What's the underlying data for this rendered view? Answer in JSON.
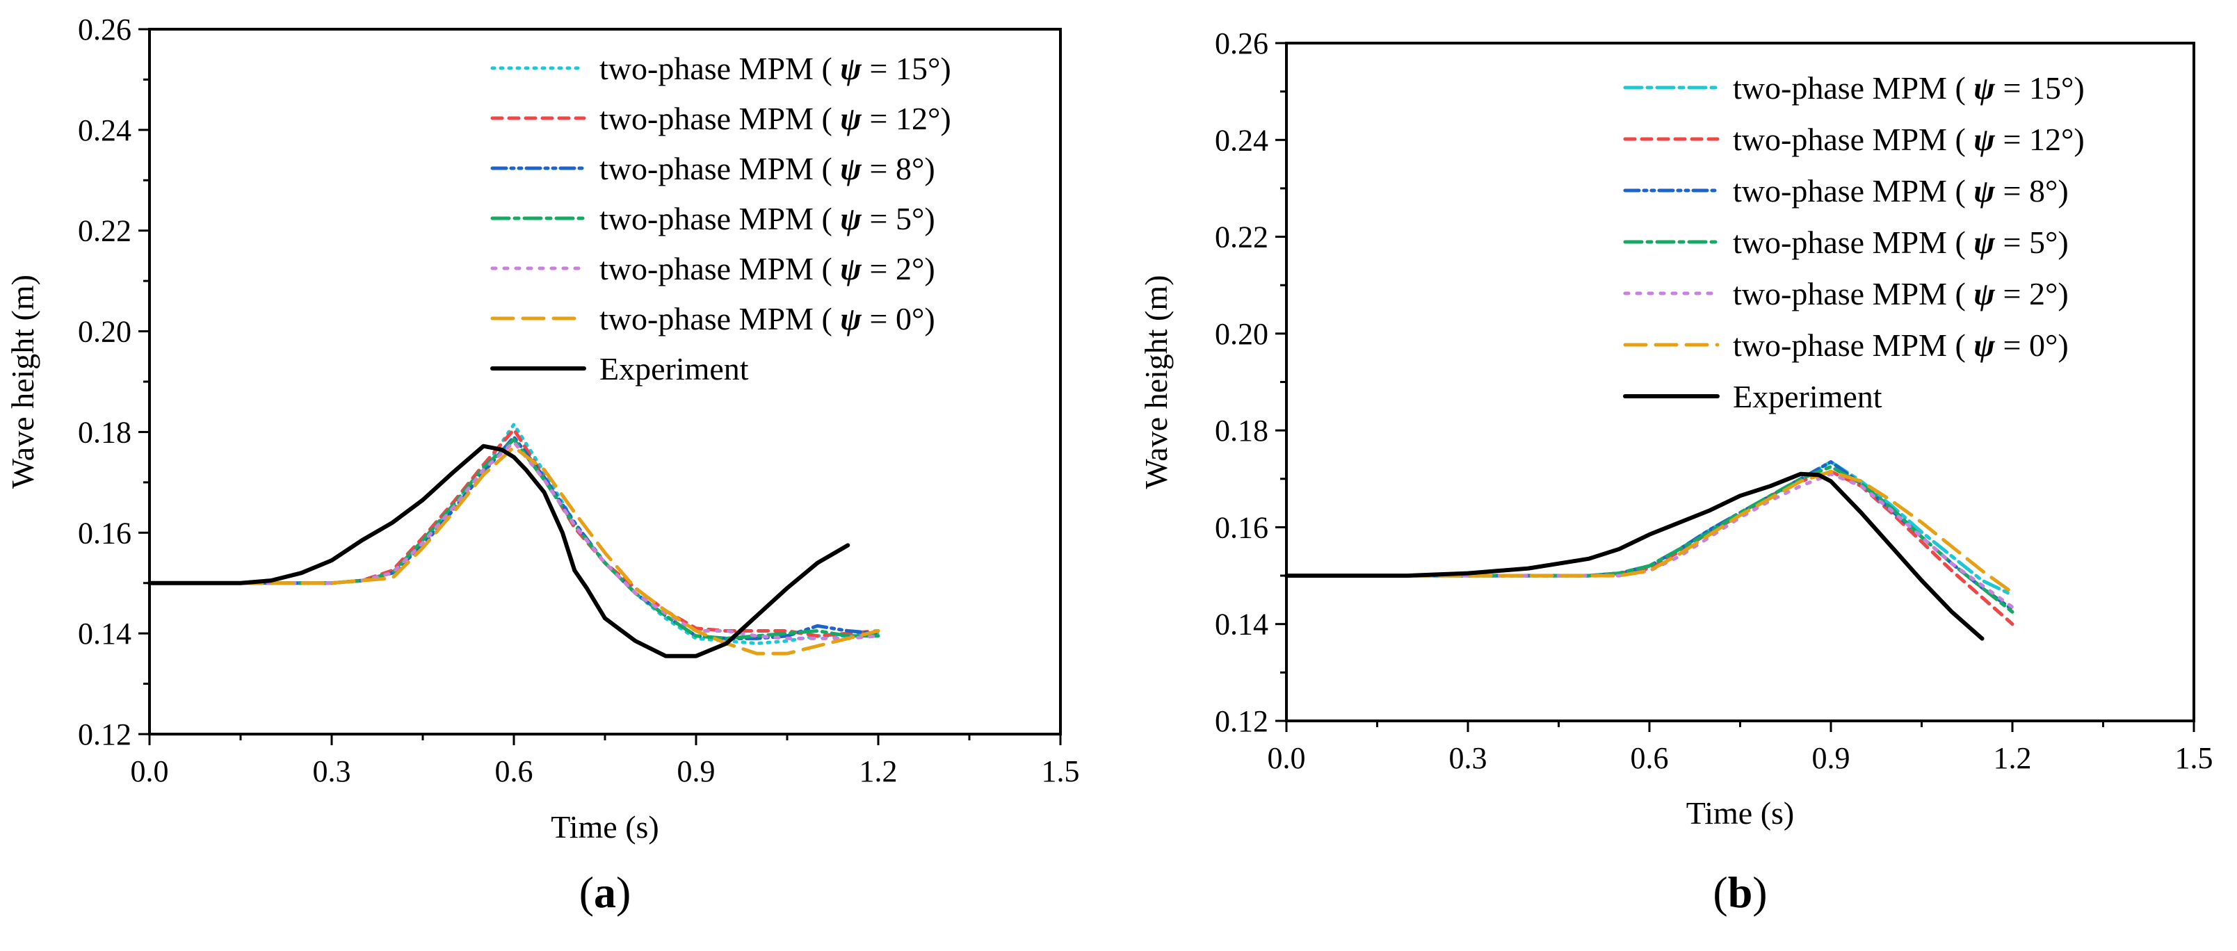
{
  "colors": {
    "s15": "#1ec8d2",
    "s12": "#f04646",
    "s8": "#1e64c8",
    "s5": "#14aa64",
    "s2": "#c882dc",
    "s0": "#e6a014",
    "experiment": "#000000"
  },
  "chart_data": [
    {
      "type": "line",
      "panel_label": "(a)",
      "panel_letter": "a",
      "xlabel": "Time (s)",
      "ylabel": "Wave height (m)",
      "xlim": [
        0.0,
        1.5
      ],
      "ylim": [
        0.12,
        0.26
      ],
      "xticks": [
        "0.0",
        "0.3",
        "0.6",
        "0.9",
        "1.2",
        "1.5"
      ],
      "yticks": [
        "0.12",
        "0.14",
        "0.16",
        "0.18",
        "0.20",
        "0.22",
        "0.24",
        "0.26"
      ],
      "legend_position": "top-right",
      "series": [
        {
          "name": "two-phase MPM (",
          "sym": "ψ",
          "tail": "= 15°)",
          "key": "s15",
          "dash": "3,9",
          "x": [
            0.0,
            0.1,
            0.2,
            0.3,
            0.35,
            0.4,
            0.45,
            0.5,
            0.55,
            0.6,
            0.65,
            0.7,
            0.75,
            0.8,
            0.85,
            0.9,
            0.95,
            1.0,
            1.05,
            1.1,
            1.15,
            1.2
          ],
          "y": [
            0.15,
            0.15,
            0.15,
            0.15,
            0.1505,
            0.152,
            0.158,
            0.1655,
            0.1725,
            0.1815,
            0.172,
            0.162,
            0.154,
            0.148,
            0.143,
            0.139,
            0.1385,
            0.138,
            0.1385,
            0.1395,
            0.1395,
            0.14
          ]
        },
        {
          "name": "two-phase MPM (",
          "sym": "ψ",
          "tail": "= 12°)",
          "key": "s12",
          "dash": "14,10",
          "x": [
            0.0,
            0.1,
            0.2,
            0.3,
            0.35,
            0.4,
            0.45,
            0.5,
            0.55,
            0.6,
            0.65,
            0.7,
            0.75,
            0.8,
            0.85,
            0.9,
            0.95,
            1.0,
            1.05,
            1.1,
            1.15,
            1.2
          ],
          "y": [
            0.15,
            0.15,
            0.15,
            0.15,
            0.1505,
            0.1525,
            0.159,
            0.166,
            0.1735,
            0.1805,
            0.171,
            0.161,
            0.154,
            0.149,
            0.1445,
            0.141,
            0.1405,
            0.1405,
            0.1405,
            0.1395,
            0.14,
            0.1405
          ]
        },
        {
          "name": "two-phase MPM (",
          "sym": "ψ",
          "tail": "= 8°)",
          "key": "s8",
          "dash": "20,7,4,7,4,7",
          "x": [
            0.0,
            0.1,
            0.2,
            0.3,
            0.35,
            0.4,
            0.45,
            0.5,
            0.55,
            0.6,
            0.65,
            0.7,
            0.75,
            0.8,
            0.85,
            0.9,
            0.95,
            1.0,
            1.05,
            1.1,
            1.15,
            1.2
          ],
          "y": [
            0.15,
            0.15,
            0.15,
            0.15,
            0.1505,
            0.152,
            0.1575,
            0.1645,
            0.172,
            0.179,
            0.171,
            0.162,
            0.154,
            0.148,
            0.1435,
            0.1395,
            0.139,
            0.139,
            0.1395,
            0.1415,
            0.1405,
            0.14
          ]
        },
        {
          "name": "two-phase MPM (",
          "sym": "ψ",
          "tail": "= 5°)",
          "key": "s5",
          "dash": "24,8,6,8",
          "x": [
            0.0,
            0.1,
            0.2,
            0.3,
            0.35,
            0.4,
            0.45,
            0.5,
            0.55,
            0.6,
            0.65,
            0.7,
            0.75,
            0.8,
            0.85,
            0.9,
            0.95,
            1.0,
            1.05,
            1.1,
            1.15,
            1.2
          ],
          "y": [
            0.15,
            0.15,
            0.15,
            0.15,
            0.1505,
            0.152,
            0.1585,
            0.1655,
            0.173,
            0.1785,
            0.1705,
            0.1615,
            0.154,
            0.148,
            0.1435,
            0.1395,
            0.139,
            0.1395,
            0.14,
            0.1405,
            0.1395,
            0.1395
          ]
        },
        {
          "name": "two-phase MPM (",
          "sym": "ψ",
          "tail": "= 2°)",
          "key": "s2",
          "dash": "5,12",
          "x": [
            0.0,
            0.1,
            0.2,
            0.3,
            0.35,
            0.4,
            0.45,
            0.5,
            0.55,
            0.6,
            0.65,
            0.7,
            0.75,
            0.8,
            0.85,
            0.9,
            0.95,
            1.0,
            1.05,
            1.1,
            1.15,
            1.2
          ],
          "y": [
            0.15,
            0.15,
            0.15,
            0.15,
            0.1505,
            0.152,
            0.158,
            0.165,
            0.1725,
            0.178,
            0.1705,
            0.1615,
            0.154,
            0.148,
            0.144,
            0.1405,
            0.1405,
            0.1395,
            0.139,
            0.139,
            0.139,
            0.1395
          ]
        },
        {
          "name": "two-phase MPM (",
          "sym": "ψ",
          "tail": "= 0°)",
          "key": "s0",
          "dash": "30,14",
          "x": [
            0.0,
            0.1,
            0.2,
            0.3,
            0.35,
            0.4,
            0.45,
            0.5,
            0.55,
            0.6,
            0.65,
            0.7,
            0.75,
            0.8,
            0.85,
            0.9,
            0.95,
            1.0,
            1.05,
            1.1,
            1.15,
            1.2
          ],
          "y": [
            0.15,
            0.15,
            0.15,
            0.15,
            0.1505,
            0.151,
            0.157,
            0.164,
            0.1715,
            0.177,
            0.1725,
            0.164,
            0.156,
            0.149,
            0.1445,
            0.1405,
            0.138,
            0.136,
            0.136,
            0.1375,
            0.139,
            0.1405
          ]
        },
        {
          "name": "Experiment",
          "sym": "",
          "tail": "",
          "key": "experiment",
          "dash": "",
          "x": [
            0.0,
            0.05,
            0.1,
            0.15,
            0.2,
            0.25,
            0.3,
            0.35,
            0.4,
            0.45,
            0.5,
            0.55,
            0.58,
            0.6,
            0.62,
            0.65,
            0.68,
            0.7,
            0.72,
            0.75,
            0.8,
            0.85,
            0.9,
            0.95,
            1.0,
            1.05,
            1.1,
            1.15
          ],
          "y": [
            0.15,
            0.15,
            0.15,
            0.15,
            0.1505,
            0.152,
            0.1545,
            0.1585,
            0.162,
            0.1665,
            0.172,
            0.1772,
            0.1765,
            0.175,
            0.1725,
            0.168,
            0.16,
            0.1525,
            0.149,
            0.143,
            0.1385,
            0.1355,
            0.1355,
            0.138,
            0.1435,
            0.149,
            0.154,
            0.1575
          ]
        }
      ]
    },
    {
      "type": "line",
      "panel_label": "(b)",
      "panel_letter": "b",
      "xlabel": "Time (s)",
      "ylabel": "Wave height (m)",
      "xlim": [
        0.0,
        1.5
      ],
      "ylim": [
        0.12,
        0.26
      ],
      "xticks": [
        "0.0",
        "0.3",
        "0.6",
        "0.9",
        "1.2",
        "1.5"
      ],
      "yticks": [
        "0.12",
        "0.14",
        "0.16",
        "0.18",
        "0.20",
        "0.22",
        "0.24",
        "0.26"
      ],
      "legend_position": "top-right",
      "series": [
        {
          "name": "two-phase MPM (",
          "sym": "ψ",
          "tail": "= 15°)",
          "key": "s15",
          "dash": "24,8,6,8",
          "x": [
            0.0,
            0.1,
            0.2,
            0.3,
            0.4,
            0.5,
            0.55,
            0.6,
            0.65,
            0.7,
            0.75,
            0.8,
            0.85,
            0.9,
            0.95,
            1.0,
            1.05,
            1.1,
            1.15,
            1.2
          ],
          "y": [
            0.15,
            0.15,
            0.15,
            0.15,
            0.15,
            0.15,
            0.1505,
            0.152,
            0.1555,
            0.1595,
            0.163,
            0.1665,
            0.17,
            0.1735,
            0.1695,
            0.1645,
            0.159,
            0.154,
            0.149,
            0.146
          ]
        },
        {
          "name": "two-phase MPM (",
          "sym": "ψ",
          "tail": "= 12°)",
          "key": "s12",
          "dash": "14,10",
          "x": [
            0.0,
            0.1,
            0.2,
            0.3,
            0.4,
            0.5,
            0.55,
            0.6,
            0.65,
            0.7,
            0.75,
            0.8,
            0.85,
            0.9,
            0.95,
            1.0,
            1.05,
            1.1,
            1.15,
            1.2
          ],
          "y": [
            0.15,
            0.15,
            0.15,
            0.15,
            0.15,
            0.15,
            0.1505,
            0.1515,
            0.155,
            0.159,
            0.1625,
            0.1665,
            0.1695,
            0.1715,
            0.1685,
            0.163,
            0.157,
            0.151,
            0.1455,
            0.14
          ]
        },
        {
          "name": "two-phase MPM (",
          "sym": "ψ",
          "tail": "= 8°)",
          "key": "s8",
          "dash": "20,7,4,7,4,7",
          "x": [
            0.0,
            0.1,
            0.2,
            0.3,
            0.4,
            0.5,
            0.55,
            0.6,
            0.65,
            0.7,
            0.75,
            0.8,
            0.85,
            0.9,
            0.95,
            1.0,
            1.05,
            1.1,
            1.15,
            1.2
          ],
          "y": [
            0.15,
            0.15,
            0.15,
            0.15,
            0.15,
            0.15,
            0.1505,
            0.152,
            0.1555,
            0.1595,
            0.163,
            0.1665,
            0.17,
            0.1735,
            0.169,
            0.1635,
            0.158,
            0.1525,
            0.1475,
            0.143
          ]
        },
        {
          "name": "two-phase MPM (",
          "sym": "ψ",
          "tail": "= 5°)",
          "key": "s5",
          "dash": "24,8,6,8",
          "x": [
            0.0,
            0.1,
            0.2,
            0.3,
            0.4,
            0.5,
            0.55,
            0.6,
            0.65,
            0.7,
            0.75,
            0.8,
            0.85,
            0.9,
            0.95,
            1.0,
            1.05,
            1.1,
            1.15,
            1.2
          ],
          "y": [
            0.15,
            0.15,
            0.15,
            0.15,
            0.15,
            0.15,
            0.1505,
            0.152,
            0.1555,
            0.159,
            0.163,
            0.1665,
            0.17,
            0.1725,
            0.169,
            0.164,
            0.158,
            0.1525,
            0.1475,
            0.1425
          ]
        },
        {
          "name": "two-phase MPM (",
          "sym": "ψ",
          "tail": "= 2°)",
          "key": "s2",
          "dash": "5,12",
          "x": [
            0.0,
            0.1,
            0.2,
            0.3,
            0.4,
            0.5,
            0.55,
            0.6,
            0.65,
            0.7,
            0.75,
            0.8,
            0.85,
            0.9,
            0.95,
            1.0,
            1.05,
            1.1,
            1.15,
            1.2
          ],
          "y": [
            0.15,
            0.15,
            0.15,
            0.15,
            0.15,
            0.15,
            0.15,
            0.151,
            0.154,
            0.158,
            0.162,
            0.1655,
            0.1685,
            0.171,
            0.1685,
            0.1635,
            0.158,
            0.1525,
            0.148,
            0.1435
          ]
        },
        {
          "name": "two-phase MPM (",
          "sym": "ψ",
          "tail": "= 0°)",
          "key": "s0",
          "dash": "30,14",
          "x": [
            0.0,
            0.1,
            0.2,
            0.3,
            0.4,
            0.5,
            0.55,
            0.6,
            0.65,
            0.7,
            0.75,
            0.8,
            0.85,
            0.9,
            0.95,
            1.0,
            1.05,
            1.1,
            1.15,
            1.2
          ],
          "y": [
            0.15,
            0.15,
            0.15,
            0.15,
            0.15,
            0.15,
            0.15,
            0.151,
            0.1545,
            0.1585,
            0.1625,
            0.166,
            0.1695,
            0.1715,
            0.1695,
            0.1655,
            0.161,
            0.156,
            0.151,
            0.1465
          ]
        },
        {
          "name": "Experiment",
          "sym": "",
          "tail": "",
          "key": "experiment",
          "dash": "",
          "x": [
            0.0,
            0.1,
            0.2,
            0.3,
            0.35,
            0.4,
            0.45,
            0.5,
            0.55,
            0.6,
            0.65,
            0.7,
            0.75,
            0.8,
            0.85,
            0.88,
            0.9,
            0.95,
            1.0,
            1.05,
            1.1,
            1.15
          ],
          "y": [
            0.15,
            0.15,
            0.15,
            0.1505,
            0.151,
            0.1515,
            0.1525,
            0.1535,
            0.1555,
            0.1585,
            0.161,
            0.1635,
            0.1665,
            0.1685,
            0.171,
            0.1708,
            0.1695,
            0.163,
            0.156,
            0.149,
            0.1425,
            0.137
          ]
        }
      ]
    }
  ]
}
